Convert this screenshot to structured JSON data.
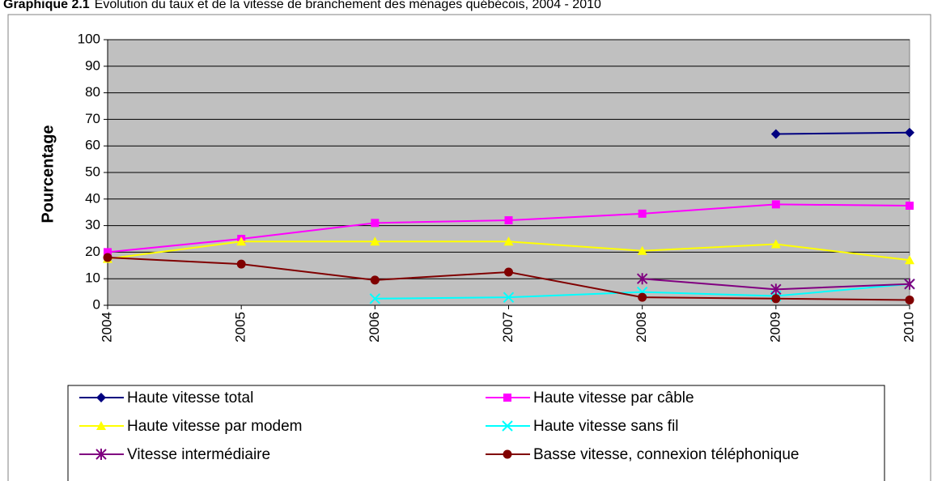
{
  "chart_data": {
    "type": "line",
    "title_prefix": "Graphique 2.1",
    "title": "Évolution du taux et de la vitesse de branchement des ménages québécois, 2004 - 2010",
    "ylabel": "Pourcentage",
    "categories": [
      "2004",
      "2005",
      "2006",
      "2007",
      "2008",
      "2009",
      "2010"
    ],
    "series": [
      {
        "name": "Haute vitesse total",
        "color": "#000080",
        "marker": "diamond",
        "values": [
          null,
          null,
          null,
          null,
          null,
          64.5,
          65
        ]
      },
      {
        "name": "Haute vitesse par câble",
        "color": "#ff00ff",
        "marker": "square",
        "values": [
          20,
          25,
          31,
          32,
          34.5,
          38,
          37.5
        ]
      },
      {
        "name": "Haute vitesse par modem",
        "color": "#ffff00",
        "marker": "triangle",
        "values": [
          17.5,
          24,
          24,
          24,
          20.5,
          23,
          17
        ]
      },
      {
        "name": "Haute vitesse sans fil",
        "color": "#00ffff",
        "marker": "x",
        "values": [
          null,
          null,
          2.5,
          3,
          5,
          3.5,
          8
        ]
      },
      {
        "name": "Vitesse intermédiaire",
        "color": "#800080",
        "marker": "asterisk",
        "values": [
          null,
          null,
          null,
          null,
          10,
          6,
          8
        ]
      },
      {
        "name": "Basse vitesse, connexion téléphonique",
        "color": "#800000",
        "marker": "circle",
        "values": [
          18,
          15.5,
          9.5,
          12.5,
          3,
          2.5,
          2
        ]
      }
    ],
    "ylim": [
      0,
      100
    ],
    "yticks": [
      0,
      10,
      20,
      30,
      40,
      50,
      60,
      70,
      80,
      90,
      100
    ],
    "grid": true,
    "plot_background": "#c0c0c0",
    "legend": "bottom"
  }
}
